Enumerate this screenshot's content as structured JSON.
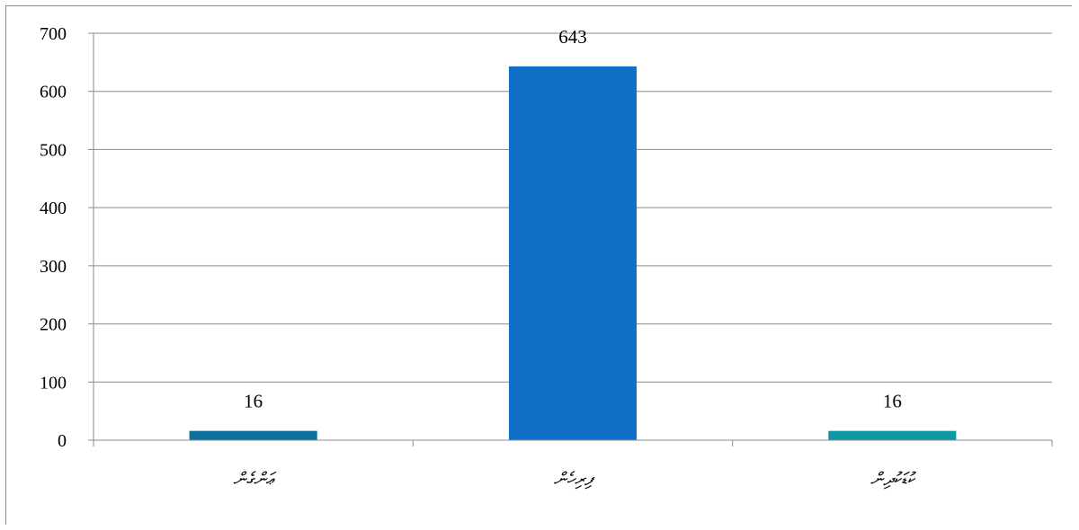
{
  "chart_data": {
    "type": "bar",
    "title": "",
    "xlabel": "",
    "ylabel": "",
    "categories": [
      "ޢަންގެން",
      "ފިރިހެން",
      "ކުޑަކުދިން"
    ],
    "values": [
      16,
      643,
      16
    ],
    "data_labels": [
      "16",
      "643",
      "16"
    ],
    "bar_colors": [
      "#0e6f9c",
      "#1170c6",
      "#0f9aa3"
    ],
    "ylim": [
      0,
      700
    ],
    "yticks": [
      0,
      100,
      200,
      300,
      400,
      500,
      600,
      700
    ],
    "grid": true,
    "legend": "none"
  }
}
